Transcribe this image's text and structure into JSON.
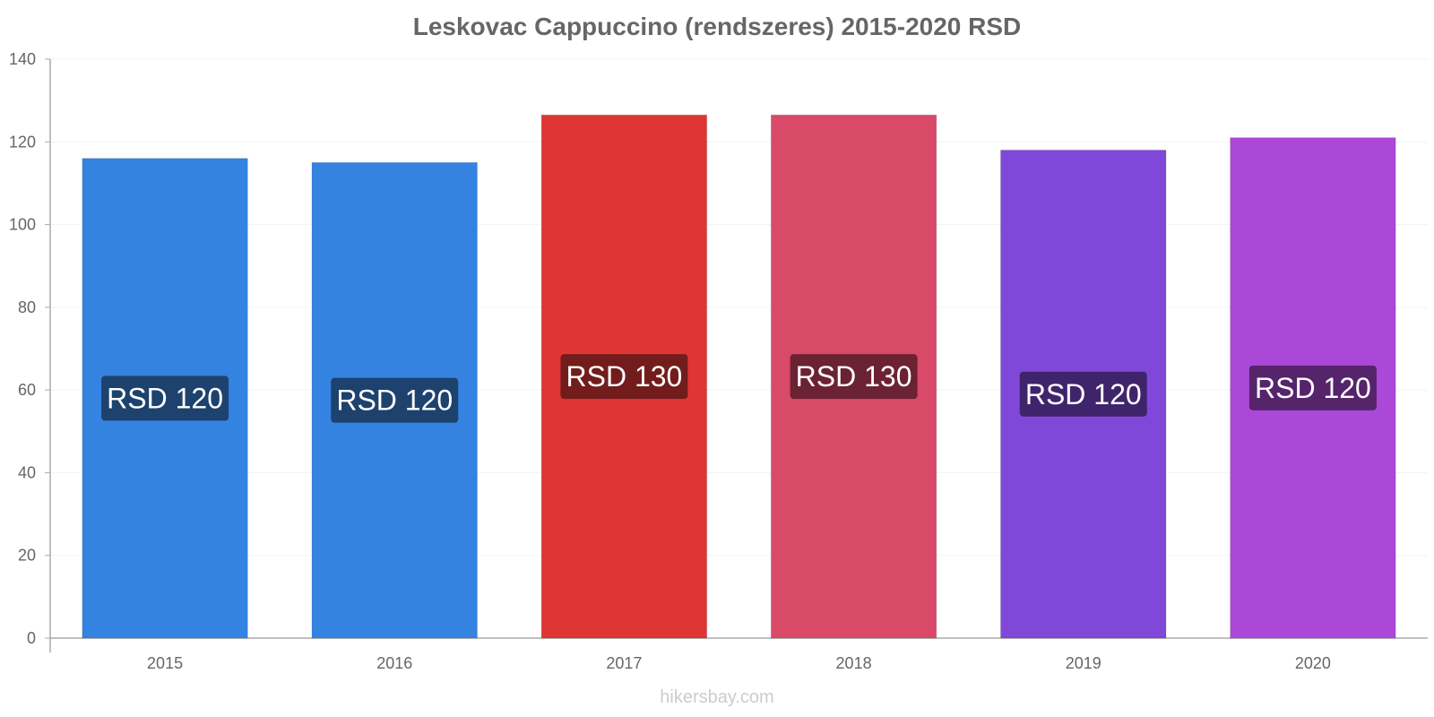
{
  "chart_data": {
    "type": "bar",
    "title": "Leskovac Cappuccino (rendszeres) 2015-2020 RSD",
    "xlabel": "",
    "ylabel": "",
    "ylim": [
      0,
      140
    ],
    "yticks": [
      0,
      20,
      40,
      60,
      80,
      100,
      120,
      140
    ],
    "categories": [
      "2015",
      "2016",
      "2017",
      "2018",
      "2019",
      "2020"
    ],
    "values": [
      116,
      115,
      126.5,
      126.5,
      118,
      121
    ],
    "data_labels": [
      "RSD 120",
      "RSD 120",
      "RSD 130",
      "RSD 130",
      "RSD 120",
      "RSD 120"
    ],
    "bar_colors": [
      "#3583e0",
      "#3583e0",
      "#e03535",
      "#d84a68",
      "#8048d8",
      "#ab48d8"
    ],
    "label_bg_colors": [
      "#1d426e",
      "#1d426e",
      "#721c1c",
      "#6b2233",
      "#40246b",
      "#55246b"
    ],
    "grid": true,
    "legend": "none"
  },
  "watermark": "hikersbay.com"
}
